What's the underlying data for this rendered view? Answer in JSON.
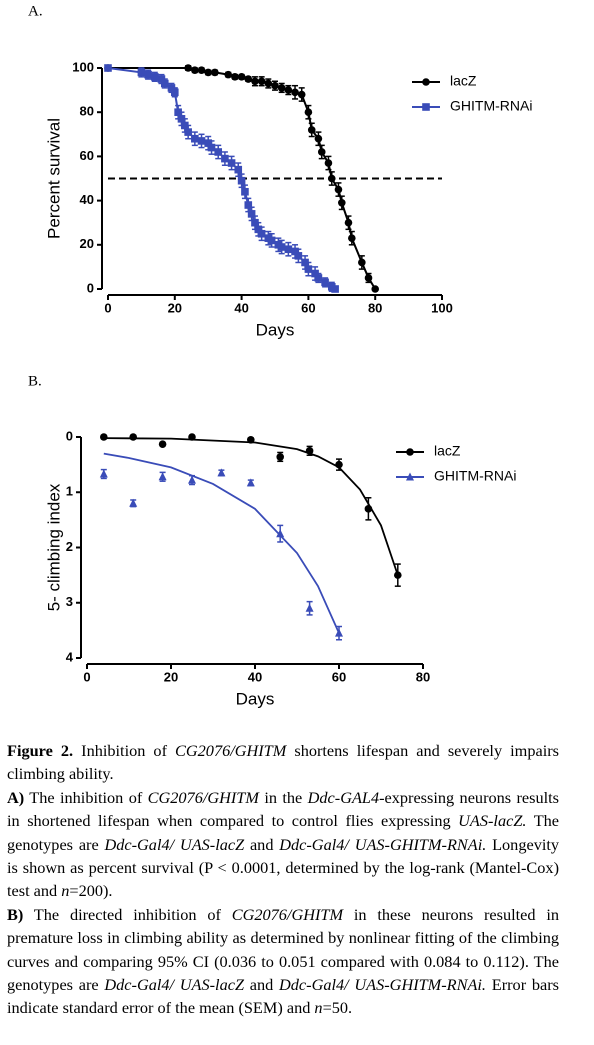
{
  "chart_data": [
    {
      "type": "line",
      "panel": "A.",
      "xlabel": "Days",
      "ylabel": "Percent survival",
      "xlim": [
        0,
        100
      ],
      "xticks": [
        0,
        20,
        40,
        60,
        80,
        100
      ],
      "ylim": [
        0,
        100
      ],
      "yticks": [
        0,
        20,
        40,
        60,
        80,
        100
      ],
      "reference_line": 50,
      "legend": "upper right",
      "series": [
        {
          "name": "lacZ",
          "color": "#000000",
          "marker": "circle",
          "x": [
            0,
            24,
            26,
            28,
            30,
            32,
            36,
            38,
            40,
            42,
            44,
            46,
            48,
            50,
            52,
            54,
            56,
            58,
            60,
            61,
            63,
            64,
            66,
            67,
            69,
            70,
            72,
            73,
            76,
            78,
            80
          ],
          "values": [
            100,
            100,
            99,
            99,
            98,
            98,
            97,
            96,
            96,
            95,
            94,
            94,
            93,
            92,
            91,
            90,
            89,
            88,
            80,
            72,
            68,
            62,
            57,
            50,
            45,
            39,
            30,
            23,
            12,
            5,
            0
          ],
          "errors": [
            0,
            1,
            1,
            1,
            1,
            1,
            1,
            1,
            1,
            1,
            2,
            2,
            2,
            2,
            2,
            2,
            3,
            3,
            3,
            3,
            3,
            3,
            3,
            3,
            3,
            3,
            3,
            3,
            3,
            2,
            0
          ]
        },
        {
          "name": "GHITM-RNAi",
          "color": "#3a4cb8",
          "marker": "square",
          "x": [
            0,
            10,
            12,
            14,
            16,
            17,
            19,
            20,
            21,
            22,
            23,
            24,
            26,
            28,
            30,
            31,
            33,
            35,
            37,
            39,
            40,
            41,
            42,
            43,
            44,
            45,
            46,
            48,
            49,
            51,
            52,
            54,
            56,
            57,
            59,
            60,
            62,
            63,
            65,
            67,
            68
          ],
          "values": [
            100,
            98,
            97,
            96,
            95,
            93,
            91,
            89,
            80,
            77,
            74,
            71,
            68,
            67,
            66,
            64,
            62,
            59,
            57,
            54,
            49,
            44,
            38,
            34,
            30,
            27,
            25,
            23,
            22,
            20,
            19,
            18,
            17,
            15,
            12,
            9,
            7,
            5,
            3,
            1,
            0
          ],
          "errors": [
            0,
            2,
            2,
            2,
            2,
            2,
            2,
            2,
            3,
            3,
            3,
            3,
            3,
            3,
            3,
            3,
            3,
            3,
            3,
            3,
            3,
            3,
            3,
            3,
            3,
            3,
            3,
            3,
            3,
            3,
            3,
            3,
            3,
            3,
            3,
            3,
            3,
            2,
            2,
            2,
            0
          ]
        }
      ]
    },
    {
      "type": "scatter",
      "panel": "B.",
      "xlabel": "Days",
      "ylabel": "5- climbing index",
      "xlim": [
        0,
        80
      ],
      "xticks": [
        0,
        20,
        40,
        60,
        80
      ],
      "ylim": [
        0,
        4
      ],
      "yticks": [
        0,
        1,
        2,
        3,
        4
      ],
      "y_inverted": true,
      "legend": "upper right",
      "series": [
        {
          "name": "lacZ",
          "color": "#000000",
          "marker": "circle",
          "x": [
            4,
            11,
            18,
            25,
            39,
            46,
            53,
            60,
            67,
            74
          ],
          "values": [
            0,
            0,
            0.13,
            0,
            0.05,
            0.36,
            0.25,
            0.5,
            1.3,
            2.5
          ],
          "errors": [
            0.03,
            0.03,
            0.03,
            0.03,
            0.03,
            0.08,
            0.08,
            0.1,
            0.2,
            0.2
          ],
          "fit_x": [
            4,
            20,
            40,
            50,
            55,
            60,
            65,
            70,
            74
          ],
          "fit_values": [
            0.02,
            0.03,
            0.1,
            0.22,
            0.35,
            0.55,
            0.95,
            1.6,
            2.5
          ]
        },
        {
          "name": "GHITM-RNAi",
          "color": "#3a4cb8",
          "marker": "triangle",
          "x": [
            4,
            11,
            18,
            25,
            32,
            39,
            46,
            53,
            60
          ],
          "values": [
            0.67,
            1.2,
            0.72,
            0.78,
            0.65,
            0.83,
            1.75,
            3.1,
            3.55
          ],
          "errors": [
            0.08,
            0.06,
            0.08,
            0.08,
            0.05,
            0.05,
            0.15,
            0.12,
            0.12
          ],
          "fit_x": [
            4,
            10,
            20,
            30,
            40,
            50,
            55,
            60
          ],
          "fit_values": [
            0.3,
            0.38,
            0.55,
            0.85,
            1.3,
            2.1,
            2.7,
            3.55
          ]
        }
      ]
    }
  ],
  "caption": {
    "paragraphs": [
      [
        {
          "t": "Figure 2.",
          "b": true
        },
        {
          "t": " Inhibition of "
        },
        {
          "t": "CG2076/GHITM",
          "i": true
        },
        {
          "t": " shortens lifespan and severely impairs climbing ability."
        }
      ],
      [
        {
          "t": "A)",
          "b": true
        },
        {
          "t": " The inhibition of "
        },
        {
          "t": "CG2076/GHITM",
          "i": true
        },
        {
          "t": " in the "
        },
        {
          "t": "Ddc-GAL4",
          "i": true
        },
        {
          "t": "-expressing neurons results in shortened lifespan when compared to control flies expressing "
        },
        {
          "t": "UAS-lacZ.",
          "i": true
        },
        {
          "t": " The genotypes are "
        },
        {
          "t": "Ddc-Gal4/ UAS-lacZ",
          "i": true
        },
        {
          "t": " and "
        },
        {
          "t": "Ddc-Gal4/ UAS-GHITM-RNAi.",
          "i": true
        },
        {
          "t": " Longevity is shown as percent survival (P < 0.0001, determined by the log-rank (Mantel-Cox) test and "
        },
        {
          "t": "n",
          "i": true
        },
        {
          "t": "=200)."
        }
      ],
      [
        {
          "t": "B)",
          "b": true
        },
        {
          "t": " The directed inhibition of "
        },
        {
          "t": "CG2076/GHITM",
          "i": true
        },
        {
          "t": " in these neurons resulted in premature loss in climbing ability as determined by nonlinear fitting of the climbing curves and comparing 95% CI (0.036 to 0.051 compared with 0.084 to 0.112). The genotypes are "
        },
        {
          "t": "Ddc-Gal4/ UAS-lacZ",
          "i": true
        },
        {
          "t": " and "
        },
        {
          "t": "Ddc-Gal4/ UAS-GHITM-RNAi.",
          "i": true
        },
        {
          "t": " Error bars indicate standard error of the mean (SEM) and "
        },
        {
          "t": "n",
          "i": true
        },
        {
          "t": "=50."
        }
      ]
    ]
  }
}
